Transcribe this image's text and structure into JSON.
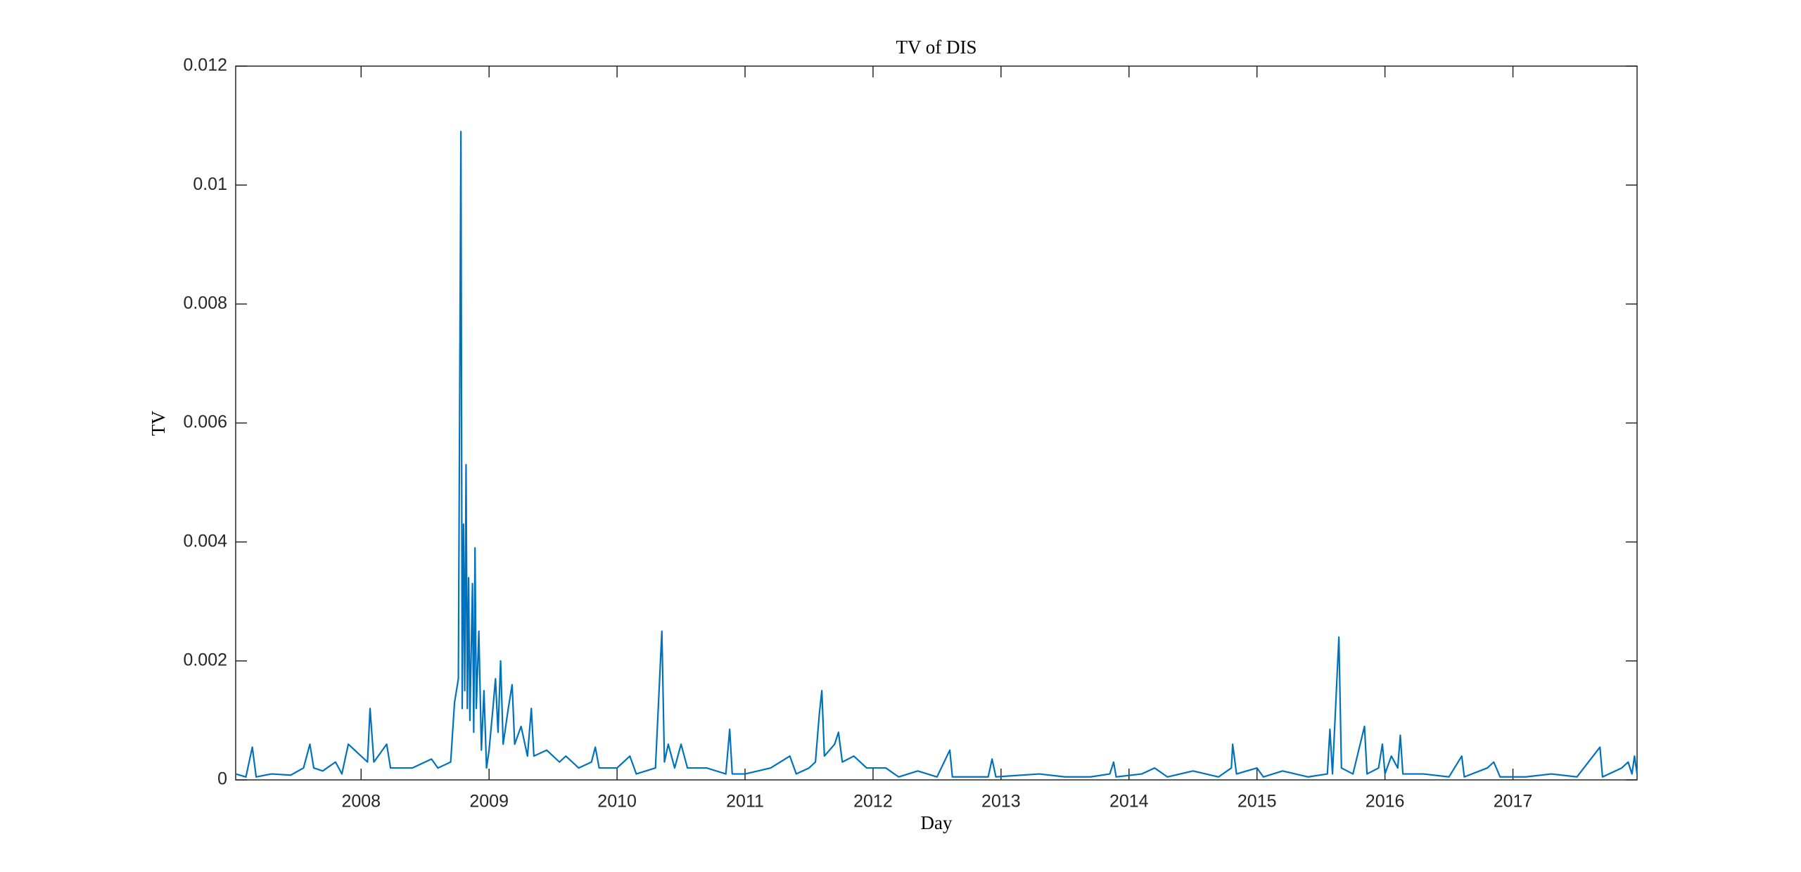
{
  "chart_data": {
    "type": "line",
    "title": "TV of DIS",
    "x_label": "Day",
    "y_label": "TV",
    "color": "#0072bd",
    "xlim": [
      2007.02,
      2017.97
    ],
    "xticks": [
      2008,
      2009,
      2010,
      2011,
      2012,
      2013,
      2014,
      2015,
      2016,
      2017
    ],
    "ylim": [
      0,
      0.012
    ],
    "yticks": [
      0,
      0.002,
      0.004,
      0.006,
      0.008,
      0.01,
      0.012
    ],
    "x": [
      2007.02,
      2007.1,
      2007.15,
      2007.18,
      2007.3,
      2007.45,
      2007.55,
      2007.6,
      2007.63,
      2007.7,
      2007.8,
      2007.85,
      2007.9,
      2008.05,
      2008.07,
      2008.1,
      2008.2,
      2008.23,
      2008.4,
      2008.55,
      2008.6,
      2008.7,
      2008.73,
      2008.76,
      2008.78,
      2008.79,
      2008.8,
      2008.81,
      2008.82,
      2008.83,
      2008.84,
      2008.85,
      2008.87,
      2008.88,
      2008.89,
      2008.9,
      2008.92,
      2008.94,
      2008.96,
      2008.98,
      2009.0,
      2009.03,
      2009.05,
      2009.07,
      2009.09,
      2009.11,
      2009.15,
      2009.18,
      2009.2,
      2009.25,
      2009.3,
      2009.33,
      2009.35,
      2009.45,
      2009.55,
      2009.6,
      2009.7,
      2009.8,
      2009.83,
      2009.86,
      2010.0,
      2010.1,
      2010.15,
      2010.3,
      2010.35,
      2010.37,
      2010.4,
      2010.45,
      2010.5,
      2010.55,
      2010.7,
      2010.85,
      2010.88,
      2010.9,
      2011.0,
      2011.2,
      2011.35,
      2011.4,
      2011.5,
      2011.55,
      2011.58,
      2011.6,
      2011.62,
      2011.7,
      2011.73,
      2011.76,
      2011.85,
      2011.95,
      2012.1,
      2012.2,
      2012.35,
      2012.5,
      2012.6,
      2012.62,
      2012.9,
      2012.93,
      2012.96,
      2013.3,
      2013.5,
      2013.7,
      2013.85,
      2013.88,
      2013.9,
      2014.1,
      2014.2,
      2014.3,
      2014.5,
      2014.7,
      2014.8,
      2014.81,
      2014.84,
      2015.0,
      2015.05,
      2015.2,
      2015.4,
      2015.55,
      2015.57,
      2015.59,
      2015.64,
      2015.66,
      2015.75,
      2015.84,
      2015.86,
      2015.95,
      2015.98,
      2016.0,
      2016.05,
      2016.1,
      2016.12,
      2016.14,
      2016.3,
      2016.5,
      2016.6,
      2016.62,
      2016.8,
      2016.85,
      2016.9,
      2017.1,
      2017.3,
      2017.5,
      2017.68,
      2017.7,
      2017.85,
      2017.9,
      2017.93,
      2017.95,
      2017.97
    ],
    "values": [
      0.0001,
      5e-05,
      0.00055,
      5e-05,
      0.0001,
      8e-05,
      0.0002,
      0.0006,
      0.0002,
      0.00015,
      0.0003,
      0.0001,
      0.0006,
      0.0003,
      0.0012,
      0.0003,
      0.0006,
      0.0002,
      0.0002,
      0.00035,
      0.0002,
      0.0003,
      0.0013,
      0.0017,
      0.0109,
      0.0012,
      0.0043,
      0.0015,
      0.0053,
      0.0012,
      0.0034,
      0.001,
      0.0033,
      0.0008,
      0.0039,
      0.0012,
      0.0025,
      0.0005,
      0.0015,
      0.0002,
      0.0005,
      0.0012,
      0.0017,
      0.0008,
      0.002,
      0.0006,
      0.0012,
      0.0016,
      0.0006,
      0.0009,
      0.0004,
      0.0012,
      0.0004,
      0.0005,
      0.0003,
      0.0004,
      0.0002,
      0.0003,
      0.00055,
      0.0002,
      0.0002,
      0.0004,
      0.0001,
      0.0002,
      0.0025,
      0.0003,
      0.0006,
      0.0002,
      0.0006,
      0.0002,
      0.0002,
      0.0001,
      0.00085,
      0.0001,
      0.0001,
      0.0002,
      0.0004,
      0.0001,
      0.0002,
      0.0003,
      0.0011,
      0.0015,
      0.0004,
      0.0006,
      0.0008,
      0.0003,
      0.0004,
      0.0002,
      0.0002,
      5e-05,
      0.00015,
      5e-05,
      0.0005,
      5e-05,
      5e-05,
      0.00035,
      5e-05,
      0.0001,
      5e-05,
      5e-05,
      0.0001,
      0.0003,
      5e-05,
      0.0001,
      0.0002,
      5e-05,
      0.00015,
      5e-05,
      0.0002,
      0.0006,
      0.0001,
      0.0002,
      5e-05,
      0.00015,
      5e-05,
      0.0001,
      0.00085,
      0.0001,
      0.0024,
      0.0002,
      0.0001,
      0.0009,
      0.0001,
      0.0002,
      0.0006,
      0.0001,
      0.0004,
      0.0002,
      0.00075,
      0.0001,
      0.0001,
      5e-05,
      0.0004,
      5e-05,
      0.0002,
      0.0003,
      5e-05,
      5e-05,
      0.0001,
      5e-05,
      0.00055,
      5e-05,
      0.0002,
      0.0003,
      0.0001,
      0.0004,
      0.0001
    ]
  }
}
